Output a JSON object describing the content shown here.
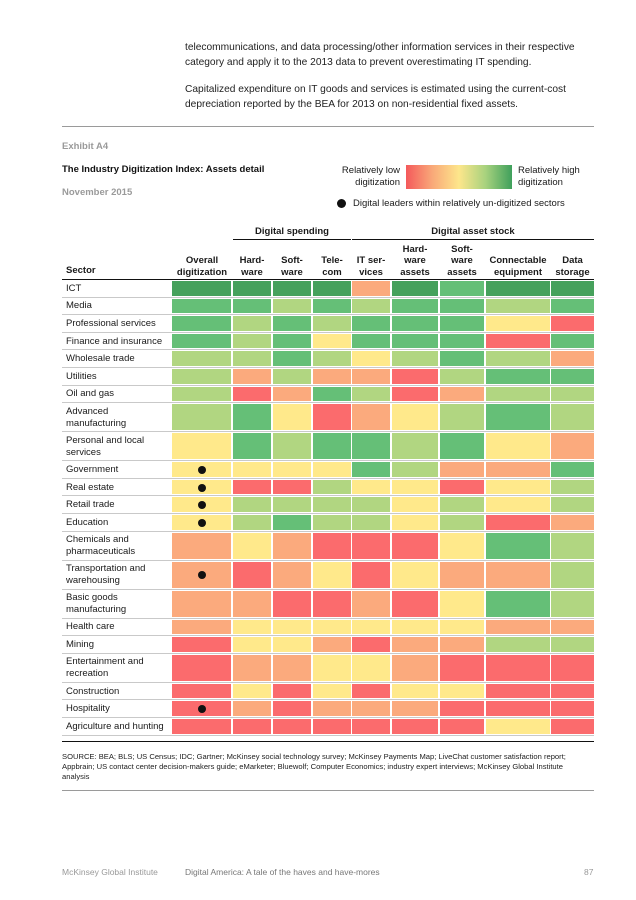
{
  "intro": {
    "line1": "telecommunications, and data processing/other information services in their respective category and apply it to the 2013 data to prevent overestimating IT spending.",
    "line2": "Capitalized expenditure on IT goods and services is estimated using the current-cost depreciation reported by the BEA for 2013 on non-residential fixed assets."
  },
  "exhibit": {
    "label": "Exhibit A4",
    "title": "The Industry Digitization Index: Assets detail",
    "date": "November 2015"
  },
  "legend": {
    "low": "Relatively low digitization",
    "high": "Relatively high digitization",
    "dot_label": "Digital leaders within relatively un-digitized sectors"
  },
  "groups": {
    "spending": "Digital spending",
    "stock": "Digital asset stock"
  },
  "columns": {
    "sector": "Sector",
    "overall": "Overall digitization",
    "hardware": "Hard- ware",
    "software": "Soft- ware",
    "telecom": "Tele- com",
    "it_services": "IT ser- vices",
    "hardware_assets": "Hard- ware assets",
    "software_assets": "Soft- ware assets",
    "connectable": "Connectable equipment",
    "data_storage": "Data storage"
  },
  "colors": {
    "5": "#46a15c",
    "4": "#65bf77",
    "3": "#b1d681",
    "2": "#ffe98b",
    "1": "#fbaa7d",
    "0": "#fb6b6d"
  },
  "rows": [
    {
      "sector": "ICT",
      "dot": false,
      "levels": [
        5,
        5,
        5,
        5,
        1,
        5,
        4,
        5,
        5
      ]
    },
    {
      "sector": "Media",
      "dot": false,
      "levels": [
        4,
        4,
        3,
        4,
        3,
        4,
        4,
        3,
        4
      ]
    },
    {
      "sector": "Professional services",
      "dot": false,
      "levels": [
        4,
        3,
        4,
        3,
        4,
        4,
        4,
        2,
        0
      ]
    },
    {
      "sector": "Finance and insurance",
      "dot": false,
      "levels": [
        4,
        3,
        4,
        2,
        4,
        4,
        4,
        0,
        4
      ]
    },
    {
      "sector": "Wholesale trade",
      "dot": false,
      "levels": [
        3,
        3,
        4,
        3,
        2,
        3,
        4,
        3,
        1
      ]
    },
    {
      "sector": "Utilities",
      "dot": false,
      "levels": [
        3,
        1,
        3,
        1,
        1,
        0,
        3,
        4,
        4
      ]
    },
    {
      "sector": "Oil and gas",
      "dot": false,
      "levels": [
        3,
        0,
        1,
        4,
        3,
        0,
        1,
        3,
        3
      ]
    },
    {
      "sector": "Advanced manufacturing",
      "dot": false,
      "levels": [
        3,
        4,
        2,
        0,
        1,
        2,
        3,
        4,
        3
      ]
    },
    {
      "sector": "Personal and local services",
      "dot": false,
      "levels": [
        2,
        4,
        3,
        4,
        4,
        3,
        4,
        2,
        1
      ]
    },
    {
      "sector": "Government",
      "dot": true,
      "levels": [
        2,
        2,
        2,
        2,
        4,
        3,
        1,
        1,
        4
      ]
    },
    {
      "sector": "Real estate",
      "dot": true,
      "levels": [
        2,
        0,
        0,
        3,
        2,
        2,
        0,
        2,
        3
      ]
    },
    {
      "sector": "Retail trade",
      "dot": true,
      "levels": [
        2,
        3,
        3,
        3,
        3,
        2,
        3,
        2,
        3
      ]
    },
    {
      "sector": "Education",
      "dot": true,
      "levels": [
        2,
        3,
        4,
        3,
        3,
        2,
        3,
        0,
        1
      ]
    },
    {
      "sector": "Chemicals and pharmaceuticals",
      "dot": false,
      "levels": [
        1,
        2,
        1,
        0,
        0,
        0,
        2,
        4,
        3
      ]
    },
    {
      "sector": "Transportation and warehousing",
      "dot": true,
      "levels": [
        1,
        0,
        1,
        2,
        0,
        2,
        1,
        1,
        3
      ]
    },
    {
      "sector": "Basic goods manufacturing",
      "dot": false,
      "levels": [
        1,
        1,
        0,
        0,
        1,
        0,
        2,
        4,
        3
      ]
    },
    {
      "sector": "Health care",
      "dot": false,
      "levels": [
        1,
        2,
        2,
        2,
        2,
        2,
        2,
        1,
        1
      ]
    },
    {
      "sector": "Mining",
      "dot": false,
      "levels": [
        0,
        2,
        2,
        1,
        0,
        1,
        1,
        3,
        3
      ]
    },
    {
      "sector": "Entertainment and recreation",
      "dot": false,
      "levels": [
        0,
        1,
        1,
        2,
        2,
        1,
        0,
        0,
        0
      ]
    },
    {
      "sector": "Construction",
      "dot": false,
      "levels": [
        0,
        2,
        0,
        2,
        0,
        2,
        2,
        0,
        0
      ]
    },
    {
      "sector": "Hospitality",
      "dot": true,
      "levels": [
        0,
        1,
        0,
        1,
        1,
        1,
        0,
        0,
        0
      ]
    },
    {
      "sector": "Agriculture and hunting",
      "dot": false,
      "levels": [
        0,
        0,
        0,
        0,
        0,
        0,
        0,
        2,
        0
      ]
    }
  ],
  "source": "SOURCE: BEA; BLS; US Census; IDC; Gartner; McKinsey social technology survey; McKinsey Payments Map; LiveChat customer satisfaction report; Appbrain; US contact center decision-makers guide; eMarketer; Bluewolf; Computer Economics; industry expert interviews; McKinsey Global Institute analysis",
  "footer": {
    "org": "McKinsey Global Institute",
    "report": "Digital America: A tale of the haves and have-mores",
    "page": "87"
  }
}
